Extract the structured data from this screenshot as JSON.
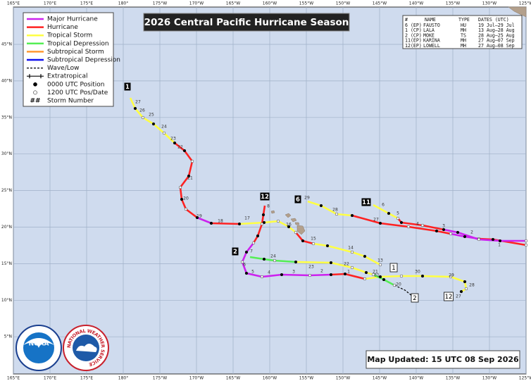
{
  "header": {
    "title": "2026 Central Pacific Hurricane Season"
  },
  "legend": [
    {
      "label": "Major Hurricane",
      "color": "#cc22ee",
      "style": "line"
    },
    {
      "label": "Hurricane",
      "color": "#ff2222",
      "style": "line"
    },
    {
      "label": "Tropical Storm",
      "color": "#ffff44",
      "style": "line"
    },
    {
      "label": "Tropical Depression",
      "color": "#55ee55",
      "style": "line"
    },
    {
      "label": "Subtropical Storm",
      "color": "#ff9933",
      "style": "line"
    },
    {
      "label": "Subtropical Depression",
      "color": "#1111ee",
      "style": "line"
    },
    {
      "label": "Wave/Low",
      "color": "#000000",
      "style": "dashed"
    },
    {
      "label": "Extratropical",
      "color": "#000000",
      "style": "cross"
    },
    {
      "label": "0000 UTC Position",
      "color": "#000000",
      "style": "dot"
    },
    {
      "label": "1200 UTC Pos/Date",
      "color": "#ffffff",
      "style": "dot"
    },
    {
      "label": "Storm Number",
      "symbol": "##",
      "style": "text"
    }
  ],
  "storm_table": {
    "columns": [
      "#",
      "NAME",
      "TYPE",
      "DATES (UTC)"
    ],
    "rows": [
      [
        "6 (EP)",
        "FAUSTO",
        "HU",
        "19 Jul—29 Jul"
      ],
      [
        "1 (CP)",
        "LALA",
        "MH",
        "13 Aug—28 Aug"
      ],
      [
        "2 (CP)",
        "MOKE",
        "TS",
        "28 Aug—25 Aug"
      ],
      [
        "11(EP)",
        "KARINA",
        "MH",
        "27 Aug—07 Sep"
      ],
      [
        "12(EP)",
        "LOWELL",
        "MH",
        "27 Aug—08 Sep"
      ]
    ]
  },
  "lon_labels": [
    "165°E",
    "170°E",
    "175°E",
    "180°",
    "175°W",
    "170°W",
    "165°W",
    "160°W",
    "155°W",
    "150°W",
    "145°W",
    "140°W",
    "135°W",
    "130°W",
    "125°W"
  ],
  "lat_labels": [
    "45°N",
    "40°N",
    "35°N",
    "30°N",
    "25°N",
    "20°N",
    "15°N",
    "10°N",
    "5°N"
  ],
  "start_labels": [
    "1",
    "2",
    "6",
    "11",
    "12"
  ],
  "end_labels": [
    "1",
    "2",
    "12"
  ],
  "day_labels": [
    [
      "27",
      "26",
      "25",
      "24",
      "23",
      "22",
      "21",
      "20",
      "19",
      "18",
      "17",
      "16",
      "15",
      "14",
      "13"
    ],
    [
      "8",
      "7",
      "6",
      "5",
      "4",
      "3",
      "2",
      "1",
      "31",
      "30",
      "29",
      "28",
      "27"
    ],
    [
      "29",
      "28",
      "27",
      "3",
      "2",
      "1"
    ],
    [
      "6",
      "5",
      "4"
    ],
    [
      "24",
      "23",
      "22",
      "21",
      "20"
    ]
  ],
  "footer": {
    "updated": "Map Updated: 15 UTC 08 Sep 2026"
  },
  "logos": {
    "noaa": "NOAA",
    "nws": "NATIONAL WEATHER SERVICE"
  }
}
